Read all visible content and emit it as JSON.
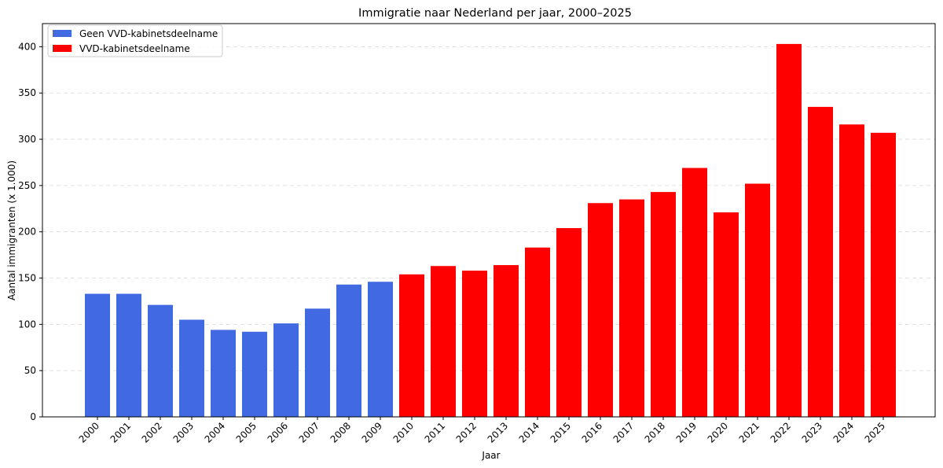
{
  "chart_data": {
    "type": "bar",
    "title": "Immigratie naar Nederland per jaar, 2000–2025",
    "xlabel": "Jaar",
    "ylabel": "Aantal immigranten (x 1.000)",
    "ylim": [
      0,
      425
    ],
    "yticks": [
      0,
      50,
      100,
      150,
      200,
      250,
      300,
      350,
      400
    ],
    "grid": "horizontal-dashed",
    "legend_position": "top-left",
    "categories": [
      "2000",
      "2001",
      "2002",
      "2003",
      "2004",
      "2005",
      "2006",
      "2007",
      "2008",
      "2009",
      "2010",
      "2011",
      "2012",
      "2013",
      "2014",
      "2015",
      "2016",
      "2017",
      "2018",
      "2019",
      "2020",
      "2021",
      "2022",
      "2023",
      "2024",
      "2025"
    ],
    "values": [
      133,
      133,
      121,
      105,
      94,
      92,
      101,
      117,
      143,
      146,
      154,
      163,
      158,
      164,
      183,
      204,
      231,
      235,
      243,
      269,
      221,
      252,
      403,
      335,
      316,
      307
    ],
    "groups": [
      0,
      0,
      0,
      0,
      0,
      0,
      0,
      0,
      0,
      0,
      1,
      1,
      1,
      1,
      1,
      1,
      1,
      1,
      1,
      1,
      1,
      1,
      1,
      1,
      1,
      1
    ],
    "series": [
      {
        "name": "Geen VVD-kabinetsdeelname",
        "color": "#4169e1"
      },
      {
        "name": "VVD-kabinetsdeelname",
        "color": "#ff0000"
      }
    ]
  }
}
